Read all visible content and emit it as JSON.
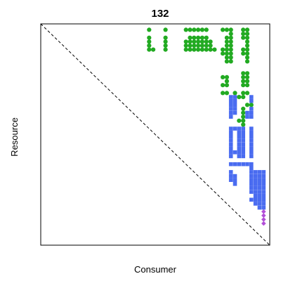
{
  "chart_data": {
    "type": "scatter",
    "title": "132",
    "xlabel": "Consumer",
    "ylabel": "Resource",
    "species_count": 56,
    "xlim": [
      0,
      56
    ],
    "ylim": [
      0,
      56
    ],
    "y_direction": "top-to-bottom",
    "ticks_shown": false,
    "grid": false,
    "diagonal": {
      "style": "dashed",
      "color": "#000000"
    },
    "legend": "none",
    "series": [
      {
        "marker": "circle",
        "color": "#22aa22",
        "points": [
          [
            26,
            1
          ],
          [
            30,
            1
          ],
          [
            35,
            1
          ],
          [
            36,
            1
          ],
          [
            37,
            1
          ],
          [
            38,
            1
          ],
          [
            39,
            1
          ],
          [
            40,
            1
          ],
          [
            44,
            1
          ],
          [
            45,
            1
          ],
          [
            46,
            1
          ],
          [
            49,
            1
          ],
          [
            50,
            1
          ],
          [
            46,
            2
          ],
          [
            49,
            2
          ],
          [
            50,
            2
          ],
          [
            26,
            3
          ],
          [
            30,
            3
          ],
          [
            36,
            3
          ],
          [
            37,
            3
          ],
          [
            38,
            3
          ],
          [
            39,
            3
          ],
          [
            40,
            3
          ],
          [
            45,
            3
          ],
          [
            46,
            3
          ],
          [
            49,
            3
          ],
          [
            50,
            3
          ],
          [
            26,
            4
          ],
          [
            30,
            4
          ],
          [
            35,
            4
          ],
          [
            36,
            4
          ],
          [
            37,
            4
          ],
          [
            38,
            4
          ],
          [
            39,
            4
          ],
          [
            40,
            4
          ],
          [
            41,
            4
          ],
          [
            45,
            4
          ],
          [
            46,
            4
          ],
          [
            50,
            4
          ],
          [
            26,
            5
          ],
          [
            30,
            5
          ],
          [
            35,
            5
          ],
          [
            36,
            5
          ],
          [
            37,
            5
          ],
          [
            38,
            5
          ],
          [
            39,
            5
          ],
          [
            40,
            5
          ],
          [
            41,
            5
          ],
          [
            45,
            5
          ],
          [
            46,
            5
          ],
          [
            50,
            5
          ],
          [
            26,
            6
          ],
          [
            27,
            6
          ],
          [
            30,
            6
          ],
          [
            35,
            6
          ],
          [
            36,
            6
          ],
          [
            37,
            6
          ],
          [
            38,
            6
          ],
          [
            39,
            6
          ],
          [
            40,
            6
          ],
          [
            41,
            6
          ],
          [
            42,
            6
          ],
          [
            44,
            6
          ],
          [
            45,
            6
          ],
          [
            46,
            6
          ],
          [
            49,
            6
          ],
          [
            50,
            6
          ],
          [
            44,
            7
          ],
          [
            45,
            7
          ],
          [
            46,
            7
          ],
          [
            49,
            7
          ],
          [
            50,
            7
          ],
          [
            45,
            8
          ],
          [
            46,
            8
          ],
          [
            50,
            8
          ],
          [
            45,
            9
          ],
          [
            46,
            9
          ],
          [
            50,
            9
          ],
          [
            49,
            12
          ],
          [
            50,
            12
          ],
          [
            44,
            13
          ],
          [
            45,
            13
          ],
          [
            49,
            13
          ],
          [
            50,
            13
          ],
          [
            45,
            14
          ],
          [
            49,
            14
          ],
          [
            50,
            14
          ],
          [
            44,
            15
          ],
          [
            45,
            15
          ],
          [
            49,
            15
          ],
          [
            50,
            15
          ],
          [
            44,
            17
          ],
          [
            45,
            17
          ],
          [
            47,
            17
          ],
          [
            49,
            17
          ],
          [
            50,
            17
          ],
          [
            48,
            18
          ],
          [
            49,
            18
          ],
          [
            50,
            20
          ],
          [
            51,
            20
          ],
          [
            49,
            21
          ],
          [
            49,
            22
          ],
          [
            49,
            23
          ],
          [
            48,
            24
          ],
          [
            49,
            24
          ],
          [
            49,
            25
          ]
        ]
      },
      {
        "marker": "square",
        "color": "#4a6cf0",
        "points": [
          [
            46,
            18
          ],
          [
            47,
            18
          ],
          [
            51,
            18
          ],
          [
            46,
            19
          ],
          [
            47,
            19
          ],
          [
            51,
            19
          ],
          [
            46,
            20
          ],
          [
            47,
            20
          ],
          [
            46,
            21
          ],
          [
            47,
            21
          ],
          [
            51,
            21
          ],
          [
            46,
            22
          ],
          [
            47,
            22
          ],
          [
            50,
            22
          ],
          [
            51,
            22
          ],
          [
            46,
            23
          ],
          [
            50,
            23
          ],
          [
            51,
            23
          ],
          [
            46,
            26
          ],
          [
            47,
            26
          ],
          [
            48,
            26
          ],
          [
            49,
            26
          ],
          [
            51,
            26
          ],
          [
            46,
            27
          ],
          [
            48,
            27
          ],
          [
            49,
            27
          ],
          [
            51,
            27
          ],
          [
            46,
            28
          ],
          [
            48,
            28
          ],
          [
            49,
            28
          ],
          [
            51,
            28
          ],
          [
            46,
            29
          ],
          [
            48,
            29
          ],
          [
            49,
            29
          ],
          [
            51,
            29
          ],
          [
            46,
            30
          ],
          [
            48,
            30
          ],
          [
            49,
            30
          ],
          [
            51,
            30
          ],
          [
            46,
            31
          ],
          [
            48,
            31
          ],
          [
            49,
            31
          ],
          [
            51,
            31
          ],
          [
            46,
            32
          ],
          [
            47,
            32
          ],
          [
            48,
            32
          ],
          [
            49,
            32
          ],
          [
            51,
            32
          ],
          [
            46,
            33
          ],
          [
            48,
            33
          ],
          [
            49,
            33
          ],
          [
            51,
            33
          ],
          [
            46,
            35
          ],
          [
            47,
            35
          ],
          [
            48,
            35
          ],
          [
            49,
            35
          ],
          [
            50,
            35
          ],
          [
            51,
            35
          ],
          [
            51,
            36
          ],
          [
            46,
            37
          ],
          [
            51,
            37
          ],
          [
            52,
            37
          ],
          [
            53,
            37
          ],
          [
            54,
            37
          ],
          [
            46,
            38
          ],
          [
            47,
            38
          ],
          [
            51,
            38
          ],
          [
            52,
            38
          ],
          [
            53,
            38
          ],
          [
            54,
            38
          ],
          [
            46,
            39
          ],
          [
            47,
            39
          ],
          [
            51,
            39
          ],
          [
            52,
            39
          ],
          [
            53,
            39
          ],
          [
            54,
            39
          ],
          [
            47,
            40
          ],
          [
            51,
            40
          ],
          [
            52,
            40
          ],
          [
            53,
            40
          ],
          [
            54,
            40
          ],
          [
            51,
            41
          ],
          [
            52,
            41
          ],
          [
            53,
            41
          ],
          [
            54,
            41
          ],
          [
            51,
            42
          ],
          [
            52,
            42
          ],
          [
            53,
            42
          ],
          [
            54,
            42
          ],
          [
            52,
            43
          ],
          [
            53,
            43
          ],
          [
            54,
            43
          ],
          [
            51,
            44
          ],
          [
            52,
            44
          ],
          [
            53,
            44
          ],
          [
            54,
            44
          ],
          [
            52,
            45
          ],
          [
            53,
            45
          ],
          [
            54,
            45
          ],
          [
            53,
            46
          ],
          [
            54,
            46
          ]
        ]
      },
      {
        "marker": "diamond",
        "color": "#b24fd8",
        "points": [
          [
            54,
            47
          ],
          [
            54,
            48
          ],
          [
            54,
            49
          ],
          [
            54,
            50
          ]
        ]
      }
    ]
  }
}
